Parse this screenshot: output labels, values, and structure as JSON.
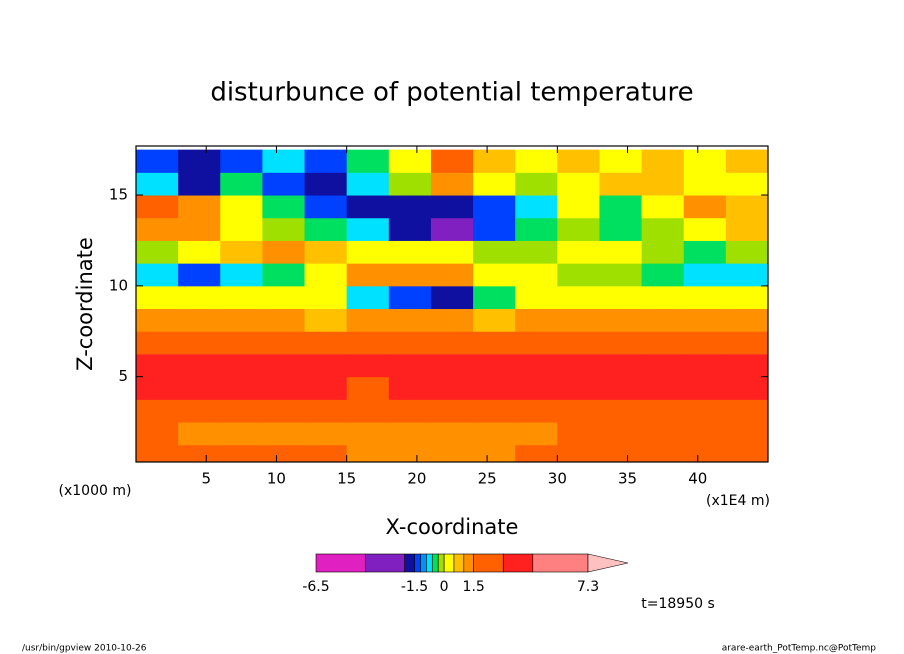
{
  "chart_data": {
    "type": "contour",
    "title": "disturbunce of potential temperature",
    "xlabel": "X-coordinate",
    "ylabel": "Z-coordinate",
    "x_unit": "(x1E4 m)",
    "y_unit": "(x1000 m)",
    "xlim": [
      0,
      45
    ],
    "ylim": [
      0.3,
      17.7
    ],
    "xticks": [
      5,
      10,
      15,
      20,
      25,
      30,
      35,
      40
    ],
    "yticks": [
      5,
      10,
      15
    ],
    "x": [
      1.5,
      4.5,
      7.5,
      10.5,
      13.5,
      16.5,
      19.5,
      22.5,
      25.5,
      28.5,
      31.5,
      34.5,
      37.5,
      40.5,
      43.5
    ],
    "y": [
      0.625,
      1.875,
      3.125,
      4.375,
      5.625,
      6.875,
      8.125,
      9.375,
      10.625,
      11.875,
      13.125,
      14.375,
      15.625,
      16.875
    ],
    "z": [
      [
        2.2,
        2.2,
        2.2,
        2.2,
        2.2,
        1.3,
        1.3,
        1.3,
        1.3,
        2.2,
        2.2,
        2.2,
        2.2,
        2.2,
        2.2
      ],
      [
        2.2,
        1.3,
        1.3,
        1.3,
        1.3,
        1.3,
        1.3,
        1.3,
        1.3,
        1.3,
        2.2,
        2.2,
        2.2,
        2.2,
        2.2
      ],
      [
        2.2,
        2.2,
        2.2,
        2.2,
        2.2,
        2.2,
        2.2,
        2.2,
        2.2,
        2.2,
        2.2,
        2.2,
        2.2,
        2.2,
        2.2
      ],
      [
        3.8,
        3.8,
        3.8,
        3.8,
        3.8,
        2.2,
        3.8,
        3.8,
        3.8,
        3.8,
        3.8,
        3.8,
        3.8,
        3.8,
        3.8
      ],
      [
        3.8,
        3.8,
        3.8,
        3.8,
        3.8,
        3.8,
        3.8,
        3.8,
        3.8,
        3.8,
        3.8,
        3.8,
        3.8,
        3.8,
        3.8
      ],
      [
        2.2,
        2.2,
        2.2,
        2.2,
        2.2,
        2.2,
        2.2,
        2.2,
        2.2,
        2.2,
        2.2,
        2.2,
        2.2,
        2.2,
        2.2
      ],
      [
        1.3,
        1.3,
        1.3,
        1.3,
        0.8,
        1.3,
        1.3,
        1.3,
        0.8,
        1.3,
        1.3,
        1.3,
        1.3,
        1.3,
        1.3
      ],
      [
        0.3,
        0.3,
        0.3,
        0.3,
        0.3,
        -0.8,
        -1.3,
        -1.8,
        -0.4,
        0.3,
        0.3,
        0.3,
        0.3,
        0.3,
        0.3
      ],
      [
        -0.8,
        -1.3,
        -0.8,
        -0.4,
        0.3,
        1.3,
        1.3,
        1.3,
        0.3,
        0.3,
        -0.1,
        -0.1,
        -0.4,
        -0.8,
        -0.8
      ],
      [
        -0.1,
        0.3,
        0.8,
        1.3,
        0.8,
        0.3,
        0.3,
        0.3,
        -0.1,
        -0.1,
        0.3,
        0.3,
        -0.1,
        -0.4,
        -0.1
      ],
      [
        1.3,
        1.3,
        0.3,
        -0.1,
        -0.4,
        -0.8,
        -1.8,
        -3,
        -1.3,
        -0.4,
        -0.1,
        -0.4,
        -0.1,
        0.3,
        0.8
      ],
      [
        2.2,
        1.3,
        0.3,
        -0.4,
        -1.3,
        -1.8,
        -1.8,
        -1.8,
        -1.3,
        -0.8,
        0.3,
        -0.4,
        0.3,
        1.3,
        0.8
      ],
      [
        -0.8,
        -1.8,
        -0.4,
        -1.3,
        -1.8,
        -0.8,
        -0.1,
        1.3,
        0.3,
        -0.1,
        0.3,
        0.8,
        0.8,
        0.3,
        0.3
      ],
      [
        -1.3,
        -1.8,
        -1.3,
        -0.8,
        -1.3,
        -0.4,
        0.3,
        2.2,
        0.8,
        0.3,
        0.8,
        0.3,
        0.8,
        0.3,
        0.8
      ]
    ],
    "colorbar": {
      "levels": [
        -6.5,
        -4,
        -2,
        -1.5,
        -1.2,
        -0.9,
        -0.6,
        -0.3,
        0,
        0.5,
        1,
        1.5,
        3,
        4.5,
        7.3
      ],
      "colors": [
        "#e020c0",
        "#8020c0",
        "#1010a0",
        "#0040ff",
        "#0090ff",
        "#00e0ff",
        "#00e060",
        "#a0e000",
        "#ffff00",
        "#ffc000",
        "#ff9000",
        "#ff6000",
        "#ff2020",
        "#ff8080"
      ],
      "extend_color": "#ffc0c0",
      "ticks": [
        -6.5,
        -1.5,
        0,
        1.5,
        7.3
      ]
    },
    "time_label": "t=18950 s",
    "footer_left": "/usr/bin/gpview  2010-10-26",
    "footer_right": "arare-earth_PotTemp.nc@PotTemp"
  }
}
